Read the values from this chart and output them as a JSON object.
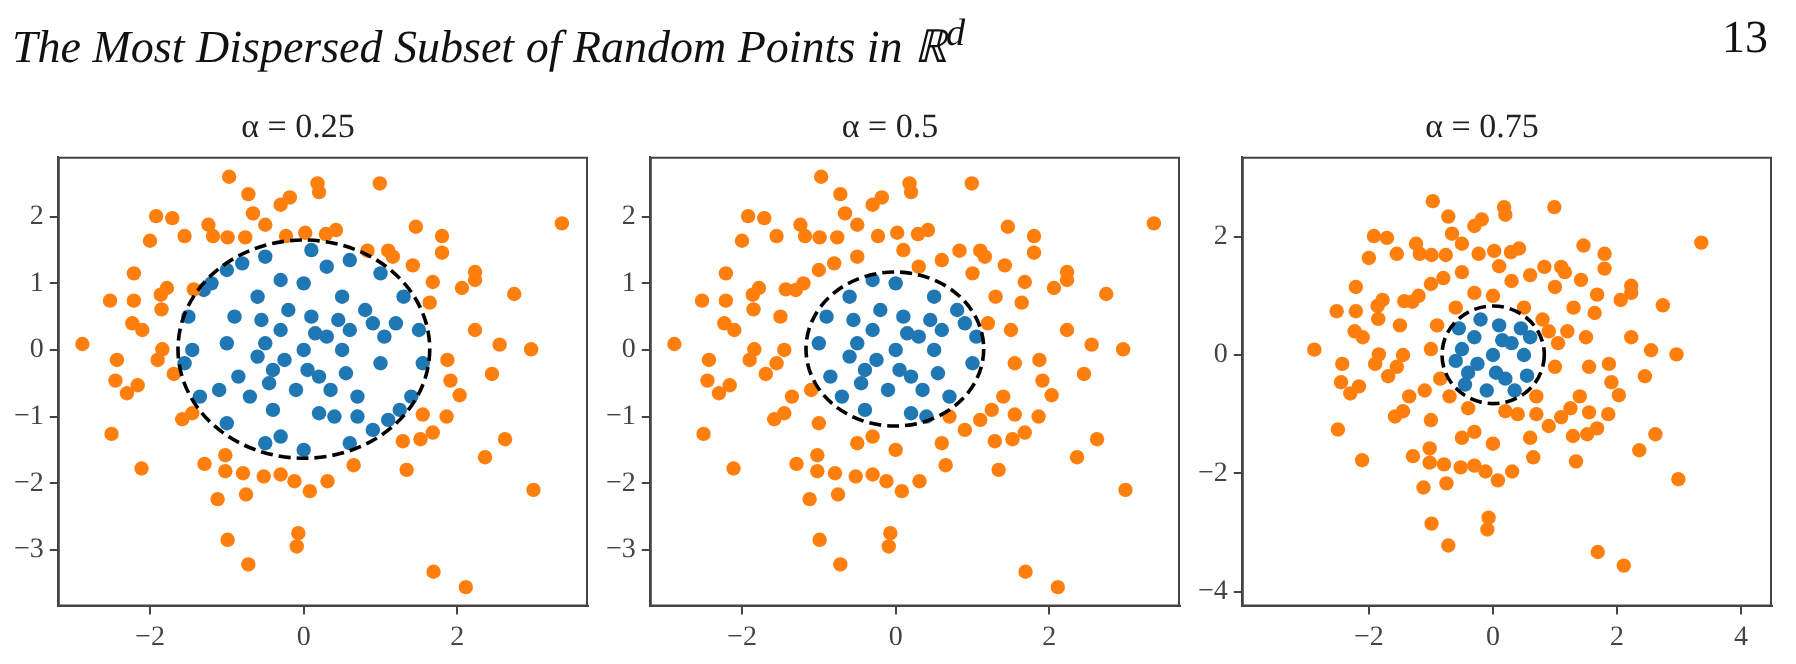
{
  "chart_data": [
    {
      "type": "scatter",
      "title": "α = 0.25",
      "annotations": [
        "The Most Dispersed Subset of Random Points in ℝ$^{d}$",
        "13"
      ],
      "xlim": [
        -3.2,
        3.7
      ],
      "ylim": [
        -3.85,
        2.9
      ],
      "xticks": [
        -2,
        0,
        2
      ],
      "yticks": [
        -3,
        -2,
        -1,
        0,
        1,
        2
      ],
      "grid": false,
      "legend": false,
      "marker": "circle",
      "series": [
        {
          "color": "#ff7f0e",
          "x": [
            -0.97,
            -0.72,
            -0.18,
            -0.3,
            0.18,
            0.2,
            0.99,
            -1.92,
            -1.71,
            -2.0,
            -1.55,
            -1.24,
            -1.18,
            -0.99,
            -0.76,
            -0.66,
            -0.5,
            -0.23,
            0.02,
            0.29,
            0.42,
            1.46,
            1.8,
            1.8,
            3.36,
            0.83,
            1.1,
            1.16,
            1.42,
            -2.21,
            2.23,
            2.23,
            2.06,
            1.68,
            -1.78,
            -1.86,
            -2.52,
            -2.21,
            -1.85,
            -1.43,
            2.74,
            1.64,
            -2.23,
            -2.1,
            2.23,
            -2.88,
            -1.84,
            -1.9,
            -2.43,
            -1.69,
            2.55,
            2.96,
            1.87,
            2.45,
            -2.45,
            -2.3,
            -2.16,
            1.91,
            2.03,
            -1.58,
            -1.45,
            -2.5,
            -2.11,
            1.55,
            1.86,
            1.68,
            1.52,
            1.29,
            2.36,
            2.62,
            -1.02,
            -1.29,
            -1.02,
            -0.79,
            -0.52,
            -0.3,
            -0.12,
            0.08,
            0.31,
            0.65,
            1.34,
            -1.12,
            -0.75,
            2.99,
            -0.99,
            -0.07,
            -0.09,
            -0.72,
            1.69,
            2.11
          ],
          "values": [
            2.6,
            2.34,
            2.29,
            2.18,
            2.5,
            2.37,
            2.5,
            2.01,
            1.98,
            1.64,
            1.71,
            1.88,
            1.71,
            1.69,
            1.69,
            2.05,
            1.88,
            1.71,
            1.76,
            1.74,
            1.8,
            1.85,
            1.71,
            1.46,
            1.9,
            1.49,
            1.49,
            1.4,
            1.27,
            1.15,
            1.17,
            1.05,
            0.93,
            1.02,
            0.93,
            0.83,
            0.74,
            0.74,
            0.61,
            0.91,
            0.84,
            0.71,
            0.4,
            0.3,
            0.3,
            0.09,
            0.01,
            -0.15,
            -0.15,
            -0.36,
            0.08,
            0.01,
            -0.15,
            -0.36,
            -0.46,
            -0.65,
            -0.53,
            -0.46,
            -0.68,
            -1.04,
            -0.95,
            -1.26,
            -1.78,
            -0.97,
            -1.0,
            -1.24,
            -1.34,
            -1.37,
            -1.61,
            -1.34,
            -1.58,
            -1.71,
            -1.82,
            -1.85,
            -1.9,
            -1.87,
            -1.97,
            -2.12,
            -1.97,
            -1.73,
            -1.8,
            -2.24,
            -2.17,
            -2.1,
            -2.85,
            -2.75,
            -2.95,
            -3.22,
            -3.33,
            -3.56
          ]
        },
        {
          "color": "#1f77b4",
          "x": [
            -1.5,
            -1.3,
            -1.0,
            -0.5,
            0.1,
            0.6,
            1.0,
            1.3,
            1.5,
            1.55,
            1.4,
            1.1,
            0.6,
            0.0,
            -0.5,
            -1.0,
            -1.35,
            -1.55,
            -1.2,
            0.9,
            -0.8,
            1.25,
            -1.45,
            0.3,
            1.2,
            -0.3,
            -1.1,
            0.7,
            -0.9,
            -0.6,
            0.0,
            0.5,
            0.9,
            1.0,
            0.7,
            0.2,
            -0.4,
            -0.85,
            -1.0,
            0.8,
            -0.3,
            0.4,
            -0.7,
            1.05,
            0.0,
            0.3,
            -0.3,
            0.2,
            -0.4,
            0.5,
            -0.5,
            0.1,
            -0.1,
            0.45,
            -0.45,
            0.55,
            -0.2,
            0.6,
            -0.6,
            0.15,
            -0.25,
            0.35,
            -0.55,
            0.05
          ],
          "values": [
            0.5,
            0.9,
            1.2,
            1.4,
            1.5,
            1.35,
            1.15,
            0.8,
            0.3,
            -0.2,
            -0.7,
            -1.05,
            -1.4,
            -1.5,
            -1.4,
            -1.1,
            -0.7,
            -0.2,
            1.0,
            -1.2,
            1.3,
            -0.9,
            0.0,
            1.25,
            0.4,
            -1.3,
            -0.6,
            -1.0,
            0.5,
            0.8,
            1.0,
            0.8,
            0.4,
            -0.2,
            -0.7,
            -0.95,
            -0.9,
            -0.4,
            0.1,
            0.6,
            1.05,
            -1.0,
            -0.7,
            0.2,
            0.0,
            0.2,
            0.3,
            -0.4,
            -0.3,
            0.0,
            0.1,
            0.5,
            -0.6,
            0.45,
            -0.5,
            -0.35,
            0.6,
            0.3,
            -0.1,
            0.25,
            -0.15,
            -0.6,
            0.45,
            -0.3
          ]
        }
      ]
    },
    {
      "type": "scatter",
      "title": "α = 0.5",
      "xlim": [
        -3.2,
        3.7
      ],
      "ylim": [
        -3.85,
        2.9
      ],
      "xticks": [
        -2,
        0,
        2
      ],
      "yticks": [
        -3,
        -2,
        -1,
        0,
        1,
        2
      ],
      "grid": false,
      "legend": false,
      "marker": "circle",
      "series": [
        {
          "color": "#ff7f0e",
          "x": [
            -0.97,
            -0.72,
            -0.18,
            -0.3,
            0.18,
            0.2,
            0.99,
            -1.92,
            -1.71,
            -2.0,
            -1.55,
            -1.24,
            -1.18,
            -0.99,
            -0.76,
            -0.66,
            -0.5,
            -0.23,
            0.02,
            0.29,
            0.42,
            1.46,
            1.8,
            1.8,
            3.36,
            0.83,
            1.1,
            1.16,
            1.42,
            -2.21,
            2.23,
            2.23,
            2.06,
            1.68,
            -1.78,
            -1.86,
            -2.52,
            -2.21,
            -1.85,
            -1.43,
            2.74,
            1.64,
            -2.23,
            -2.1,
            2.23,
            -2.88,
            -1.84,
            -1.9,
            -2.43,
            -1.69,
            2.55,
            2.96,
            1.87,
            2.45,
            -2.45,
            -2.3,
            -2.16,
            1.91,
            2.03,
            -1.58,
            -1.45,
            -2.5,
            -2.11,
            1.55,
            1.86,
            1.68,
            1.52,
            1.29,
            2.36,
            2.62,
            -1.02,
            -1.29,
            -1.02,
            -0.79,
            -0.52,
            -0.3,
            -0.12,
            0.08,
            0.31,
            0.65,
            1.34,
            -1.12,
            -0.75,
            2.99,
            -0.99,
            -0.07,
            -0.09,
            -0.72,
            1.69,
            2.11,
            -1.5,
            -1.3,
            -1.0,
            -0.5,
            0.1,
            0.6,
            1.0,
            1.3,
            1.5,
            1.55,
            1.4,
            1.1,
            0.6,
            0.0,
            -0.5,
            -1.0,
            -1.35,
            -1.55,
            -1.2,
            0.9,
            -0.8,
            1.25,
            -1.45,
            0.3,
            1.2,
            -0.3,
            -1.1,
            0.7
          ],
          "values": [
            2.6,
            2.34,
            2.29,
            2.18,
            2.5,
            2.37,
            2.5,
            2.01,
            1.98,
            1.64,
            1.71,
            1.88,
            1.71,
            1.69,
            1.69,
            2.05,
            1.88,
            1.71,
            1.76,
            1.74,
            1.8,
            1.85,
            1.71,
            1.46,
            1.9,
            1.49,
            1.49,
            1.4,
            1.27,
            1.15,
            1.17,
            1.05,
            0.93,
            1.02,
            0.93,
            0.83,
            0.74,
            0.74,
            0.61,
            0.91,
            0.84,
            0.71,
            0.4,
            0.3,
            0.3,
            0.09,
            0.01,
            -0.15,
            -0.15,
            -0.36,
            0.08,
            0.01,
            -0.15,
            -0.36,
            -0.46,
            -0.65,
            -0.53,
            -0.46,
            -0.68,
            -1.04,
            -0.95,
            -1.26,
            -1.78,
            -0.97,
            -1.0,
            -1.24,
            -1.34,
            -1.37,
            -1.61,
            -1.34,
            -1.58,
            -1.71,
            -1.82,
            -1.85,
            -1.9,
            -1.87,
            -1.97,
            -2.12,
            -1.97,
            -1.73,
            -1.8,
            -2.24,
            -2.17,
            -2.1,
            -2.85,
            -2.75,
            -2.95,
            -3.22,
            -3.33,
            -3.56,
            0.5,
            0.9,
            1.2,
            1.4,
            1.5,
            1.35,
            1.15,
            0.8,
            0.3,
            -0.2,
            -0.7,
            -1.05,
            -1.4,
            -1.5,
            -1.4,
            -1.1,
            -0.7,
            -0.2,
            1.0,
            -1.2,
            1.3,
            -0.9,
            0.0,
            1.25,
            0.4,
            -1.3,
            -0.6,
            -1.0
          ]
        },
        {
          "color": "#1f77b4",
          "x": [
            -0.9,
            -0.6,
            0.0,
            0.5,
            0.9,
            1.0,
            0.7,
            0.2,
            -0.4,
            -0.85,
            -1.0,
            0.8,
            -0.3,
            0.4,
            -0.7,
            1.05,
            0.0,
            0.3,
            -0.3,
            0.2,
            -0.4,
            0.5,
            -0.5,
            0.1,
            -0.1,
            0.45,
            -0.45,
            0.55,
            -0.2,
            0.6,
            -0.6,
            0.15,
            -0.25,
            0.35,
            -0.55,
            0.05
          ],
          "values": [
            0.5,
            0.8,
            1.0,
            0.8,
            0.4,
            -0.2,
            -0.7,
            -0.95,
            -0.9,
            -0.4,
            0.1,
            0.6,
            1.05,
            -1.0,
            -0.7,
            0.2,
            0.0,
            0.2,
            0.3,
            -0.4,
            -0.3,
            0.0,
            0.1,
            0.5,
            -0.6,
            0.45,
            -0.5,
            -0.35,
            0.6,
            0.3,
            -0.1,
            0.25,
            -0.15,
            -0.6,
            0.45,
            -0.3
          ]
        }
      ]
    },
    {
      "type": "scatter",
      "title": "α = 0.75",
      "xlim": [
        -4.05,
        4.5
      ],
      "ylim": [
        -4.25,
        3.35
      ],
      "xticks": [
        -2,
        0,
        2,
        4
      ],
      "yticks": [
        -4,
        -2,
        0,
        2
      ],
      "grid": false,
      "legend": false,
      "marker": "circle",
      "series": [
        {
          "color": "#ff7f0e",
          "x": [
            -0.97,
            -0.72,
            -0.18,
            -0.3,
            0.18,
            0.2,
            0.99,
            -1.92,
            -1.71,
            -2.0,
            -1.55,
            -1.24,
            -1.18,
            -0.99,
            -0.76,
            -0.66,
            -0.5,
            -0.23,
            0.02,
            0.29,
            0.42,
            1.46,
            1.8,
            1.8,
            3.36,
            0.83,
            1.1,
            1.16,
            1.42,
            -2.21,
            2.23,
            2.23,
            2.06,
            1.68,
            -1.78,
            -1.86,
            -2.52,
            -2.21,
            -1.85,
            -1.43,
            2.74,
            1.64,
            -2.23,
            -2.1,
            2.23,
            -2.88,
            -1.84,
            -1.9,
            -2.43,
            -1.69,
            2.55,
            2.96,
            1.87,
            2.45,
            -2.45,
            -2.3,
            -2.16,
            1.91,
            2.03,
            -1.58,
            -1.45,
            -2.5,
            -2.11,
            1.55,
            1.86,
            1.68,
            1.52,
            1.29,
            2.36,
            2.62,
            -1.02,
            -1.29,
            -1.02,
            -0.79,
            -0.52,
            -0.3,
            -0.12,
            0.08,
            0.31,
            0.65,
            1.34,
            -1.12,
            -0.75,
            2.99,
            -0.99,
            -0.07,
            -0.09,
            -0.72,
            1.69,
            2.11,
            -1.5,
            -1.3,
            -1.0,
            -0.5,
            0.1,
            0.6,
            1.0,
            1.3,
            1.5,
            1.55,
            1.4,
            1.1,
            0.6,
            0.0,
            -0.5,
            -1.0,
            -1.35,
            -1.55,
            -1.2,
            0.9,
            -0.8,
            1.25,
            -1.45,
            0.3,
            1.2,
            -0.3,
            -1.1,
            0.7,
            -0.9,
            -0.6,
            0.0,
            0.5,
            0.9,
            1.0,
            0.7,
            0.2,
            -0.4,
            -0.85,
            -1.0,
            0.8,
            -0.3,
            0.4,
            -0.7,
            1.05
          ],
          "values": [
            2.6,
            2.34,
            2.29,
            2.18,
            2.5,
            2.37,
            2.5,
            2.01,
            1.98,
            1.64,
            1.71,
            1.88,
            1.71,
            1.69,
            1.69,
            2.05,
            1.88,
            1.71,
            1.76,
            1.74,
            1.8,
            1.85,
            1.71,
            1.46,
            1.9,
            1.49,
            1.49,
            1.4,
            1.27,
            1.15,
            1.17,
            1.05,
            0.93,
            1.02,
            0.93,
            0.83,
            0.74,
            0.74,
            0.61,
            0.91,
            0.84,
            0.71,
            0.4,
            0.3,
            0.3,
            0.09,
            0.01,
            -0.15,
            -0.15,
            -0.36,
            0.08,
            0.01,
            -0.15,
            -0.36,
            -0.46,
            -0.65,
            -0.53,
            -0.46,
            -0.68,
            -1.04,
            -0.95,
            -1.26,
            -1.78,
            -0.97,
            -1.0,
            -1.24,
            -1.34,
            -1.37,
            -1.61,
            -1.34,
            -1.58,
            -1.71,
            -1.82,
            -1.85,
            -1.9,
            -1.87,
            -1.97,
            -2.12,
            -1.97,
            -1.73,
            -1.8,
            -2.24,
            -2.17,
            -2.1,
            -2.85,
            -2.75,
            -2.95,
            -3.22,
            -3.33,
            -3.56,
            0.5,
            0.9,
            1.2,
            1.4,
            1.5,
            1.35,
            1.15,
            0.8,
            0.3,
            -0.2,
            -0.7,
            -1.05,
            -1.4,
            -1.5,
            -1.4,
            -1.1,
            -0.7,
            -0.2,
            1.0,
            -1.2,
            1.3,
            -0.9,
            0.0,
            1.25,
            0.4,
            -1.3,
            -0.6,
            -1.0,
            0.5,
            0.8,
            1.0,
            0.8,
            0.4,
            -0.2,
            -0.7,
            -0.95,
            -0.9,
            -0.4,
            0.1,
            0.6,
            1.05,
            -1.0,
            -0.7,
            0.2
          ]
        },
        {
          "color": "#1f77b4",
          "x": [
            0.0,
            0.3,
            -0.3,
            0.2,
            -0.4,
            0.5,
            -0.5,
            0.1,
            -0.1,
            0.45,
            -0.45,
            0.55,
            -0.2,
            0.6,
            -0.6,
            0.15,
            -0.25,
            0.35,
            -0.55,
            0.05
          ],
          "values": [
            0.0,
            0.2,
            0.3,
            -0.4,
            -0.3,
            0.0,
            0.1,
            0.5,
            -0.6,
            0.45,
            -0.5,
            -0.35,
            0.6,
            0.3,
            -0.1,
            0.25,
            -0.15,
            -0.6,
            0.45,
            -0.3
          ]
        }
      ]
    }
  ]
}
